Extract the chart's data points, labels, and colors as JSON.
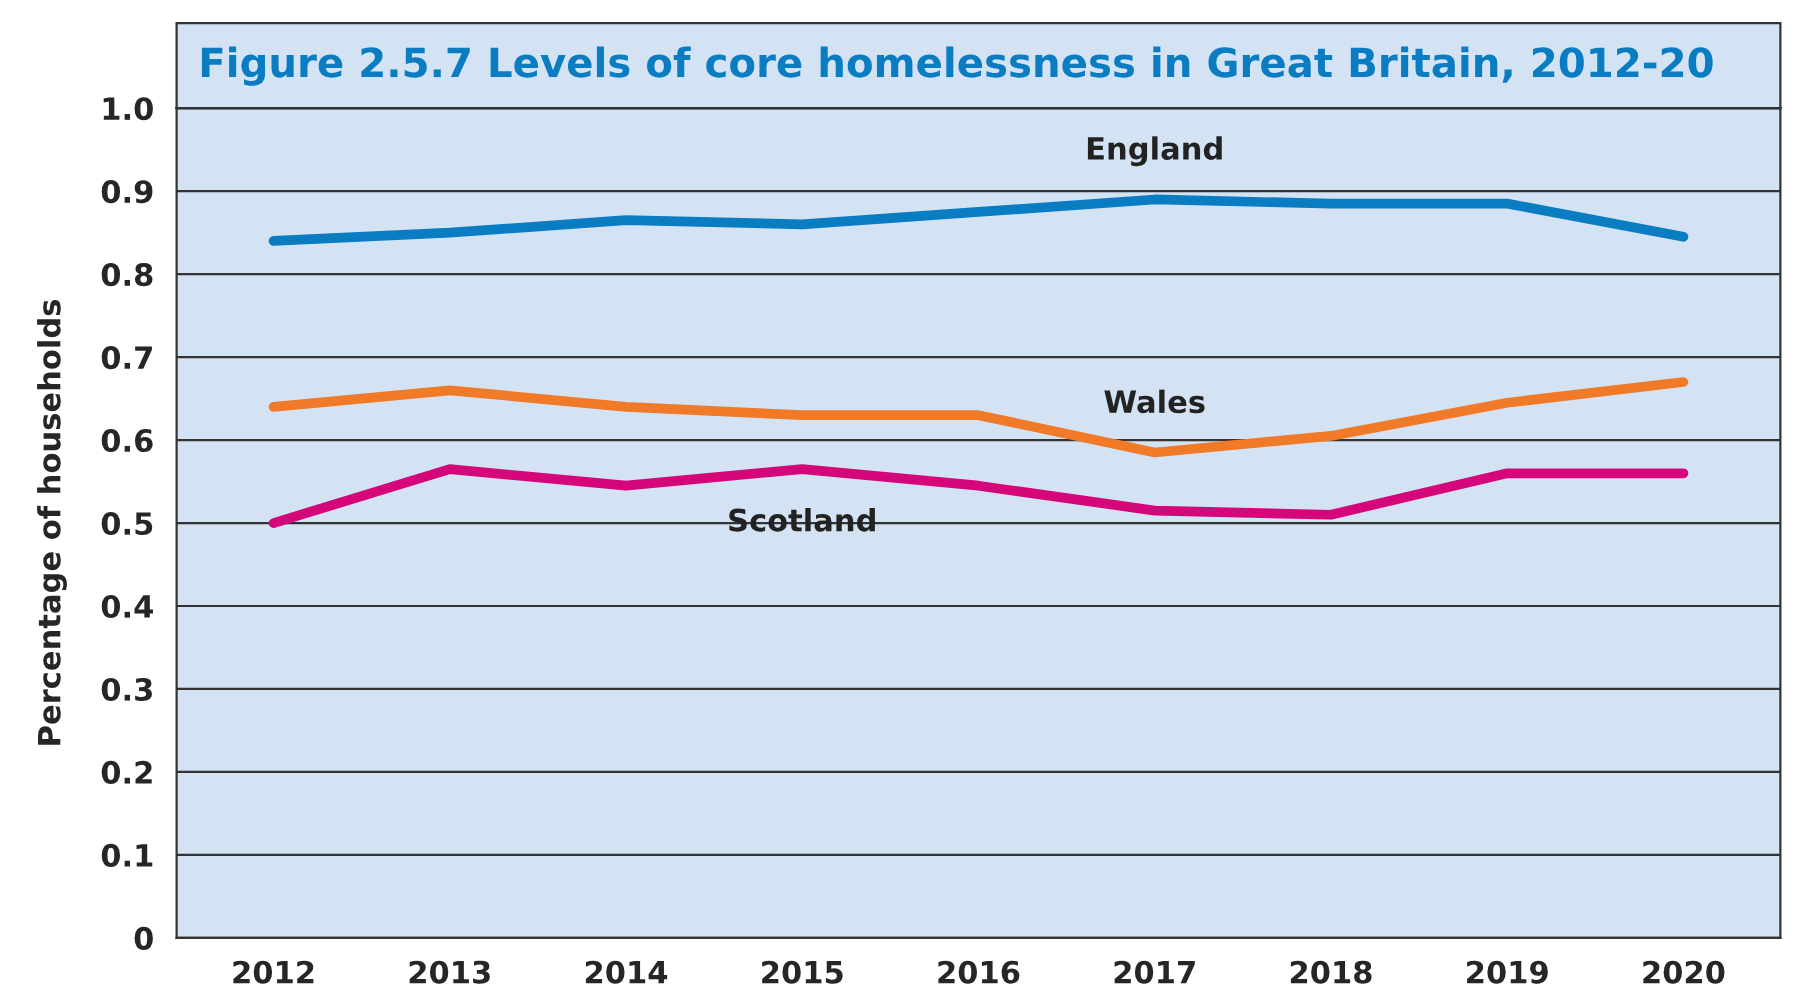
{
  "chart_data": {
    "type": "line",
    "title": "Figure 2.5.7 Levels of core homelessness in Great Britain, 2012-20",
    "ylabel": "Percentage of households",
    "categories": [
      "2012",
      "2013",
      "2014",
      "2015",
      "2016",
      "2017",
      "2018",
      "2019",
      "2020"
    ],
    "series": [
      {
        "name": "England",
        "color": "#0a7cc1",
        "values": [
          0.84,
          0.85,
          0.865,
          0.86,
          0.875,
          0.89,
          0.885,
          0.885,
          0.845
        ]
      },
      {
        "name": "Wales",
        "color": "#f07a28",
        "values": [
          0.64,
          0.66,
          0.64,
          0.63,
          0.63,
          0.585,
          0.605,
          0.645,
          0.67
        ]
      },
      {
        "name": "Scotland",
        "color": "#d5067a",
        "values": [
          0.5,
          0.565,
          0.545,
          0.565,
          0.545,
          0.515,
          0.51,
          0.56,
          0.56
        ]
      }
    ],
    "ylim": [
      0,
      1.0
    ],
    "yticks": [
      0,
      0.1,
      0.2,
      0.3,
      0.4,
      0.5,
      0.6,
      0.7,
      0.8,
      0.9,
      {
        "value": 1.0,
        "label": "1.0"
      }
    ],
    "grid": "y",
    "legend": false,
    "marker": "none",
    "line_style": "solid"
  }
}
